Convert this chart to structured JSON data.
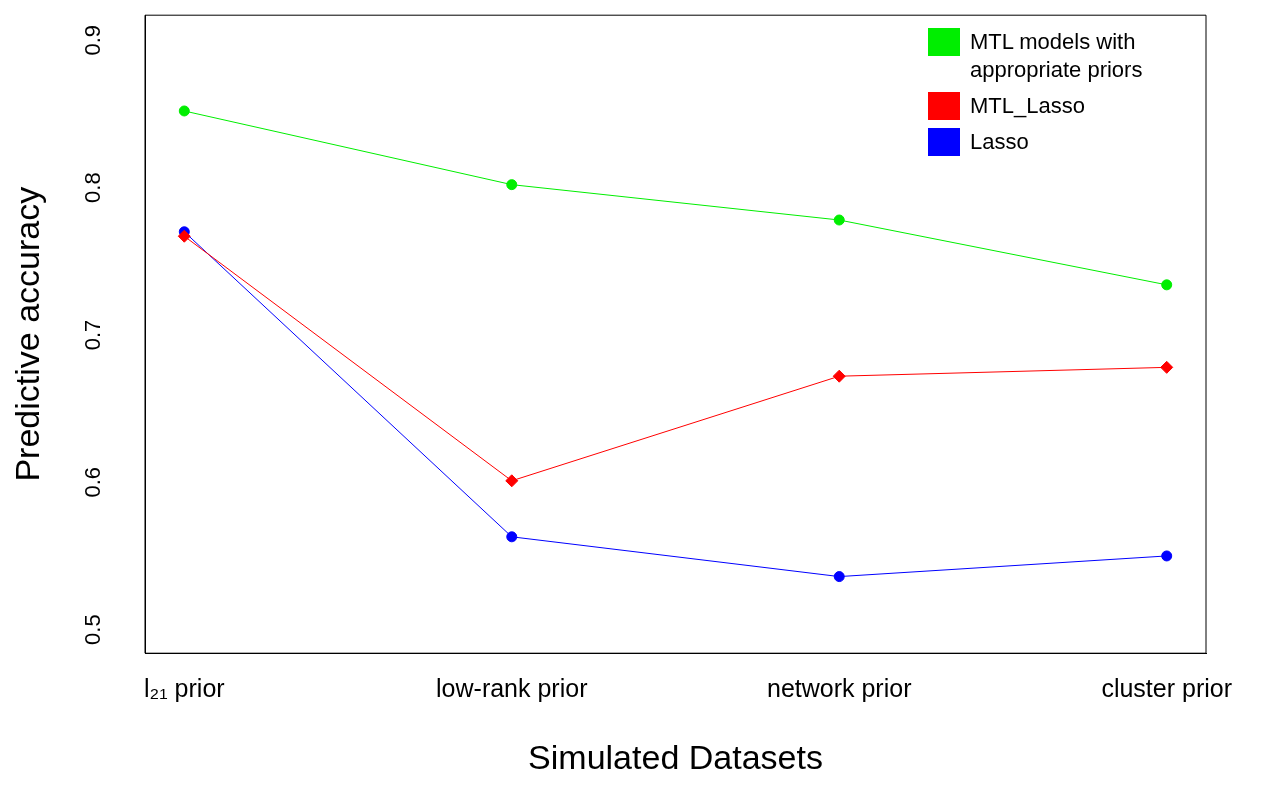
{
  "chart_data": {
    "type": "line",
    "xlabel": "Simulated Datasets",
    "ylabel": "Predictive accuracy",
    "categories": [
      "l₂₁ prior",
      "low-rank prior",
      "network prior",
      "cluster prior"
    ],
    "series": [
      {
        "name": "MTL models with appropriate priors",
        "color": "#00ee00",
        "marker": "circle",
        "values": [
          0.852,
          0.802,
          0.778,
          0.734
        ]
      },
      {
        "name": "MTL_Lasso",
        "color": "#ff0000",
        "marker": "diamond",
        "values": [
          0.767,
          0.601,
          0.672,
          0.678
        ]
      },
      {
        "name": "Lasso",
        "color": "#0000ff",
        "marker": "circle",
        "values": [
          0.77,
          0.563,
          0.536,
          0.55
        ]
      }
    ],
    "ylim": [
      0.484,
      0.917
    ],
    "yticks": [
      0.5,
      0.6,
      0.7,
      0.8,
      0.9
    ],
    "grid": false,
    "legend": "top right"
  }
}
